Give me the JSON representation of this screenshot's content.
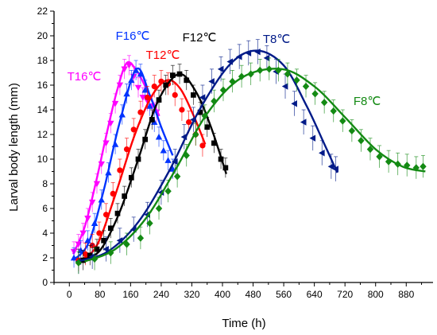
{
  "chart_data": {
    "type": "scatter",
    "xlabel": "Time (h)",
    "ylabel": "Larval body length (mm)",
    "xlim": [
      -40,
      950
    ],
    "ylim": [
      0,
      22
    ],
    "xticks": [
      0,
      80,
      160,
      240,
      320,
      400,
      480,
      560,
      640,
      720,
      800,
      880
    ],
    "yticks": [
      0,
      2,
      4,
      6,
      8,
      10,
      12,
      14,
      16,
      18,
      20,
      22
    ],
    "legend": "labels placed next to curves",
    "series": [
      {
        "name": "T16℃",
        "color": "#ff00ff",
        "marker": "triangle-down",
        "points": [
          [
            12,
            2.5
          ],
          [
            24,
            3.1
          ],
          [
            36,
            4.0
          ],
          [
            48,
            5.2
          ],
          [
            60,
            6.5
          ],
          [
            72,
            8.0
          ],
          [
            84,
            9.6
          ],
          [
            96,
            11.3
          ],
          [
            108,
            12.9
          ],
          [
            120,
            14.5
          ],
          [
            132,
            16.0
          ],
          [
            144,
            17.3
          ],
          [
            156,
            17.6
          ],
          [
            168,
            16.7
          ],
          [
            180,
            15.8
          ],
          [
            192,
            15.0
          ],
          [
            204,
            14.7
          ],
          [
            216,
            14.3
          ],
          [
            228,
            13.8
          ]
        ],
        "err": 0.8,
        "fit": {
          "peak_x": 150,
          "peak_y": 17.8,
          "x_range": [
            10,
            235
          ],
          "curve": [
            [
              10,
              2.3
            ],
            [
              40,
              4.5
            ],
            [
              70,
              8.2
            ],
            [
              100,
              12.4
            ],
            [
              125,
              15.6
            ],
            [
              150,
              17.8
            ],
            [
              175,
              17.2
            ],
            [
              200,
              15.8
            ],
            [
              235,
              13.5
            ]
          ]
        }
      },
      {
        "name": "F16℃",
        "color": "#0033ff",
        "marker": "triangle-up",
        "points": [
          [
            12,
            2.0
          ],
          [
            30,
            2.6
          ],
          [
            48,
            3.4
          ],
          [
            66,
            4.8
          ],
          [
            84,
            6.7
          ],
          [
            102,
            8.9
          ],
          [
            120,
            11.2
          ],
          [
            138,
            13.6
          ],
          [
            150,
            15.3
          ],
          [
            162,
            16.4
          ],
          [
            174,
            17.2
          ],
          [
            186,
            16.9
          ],
          [
            198,
            15.6
          ],
          [
            210,
            14.3
          ],
          [
            222,
            13.0
          ],
          [
            234,
            11.8
          ],
          [
            246,
            10.7
          ],
          [
            258,
            9.9
          ],
          [
            270,
            9.2
          ]
        ],
        "err": 0.8,
        "fit": {
          "peak_x": 175,
          "peak_y": 17.3,
          "x_range": [
            10,
            270
          ],
          "curve": [
            [
              10,
              1.8
            ],
            [
              50,
              3.2
            ],
            [
              90,
              7.5
            ],
            [
              130,
              12.8
            ],
            [
              175,
              17.3
            ],
            [
              210,
              15.2
            ],
            [
              240,
              12.6
            ],
            [
              270,
              10.3
            ]
          ]
        }
      },
      {
        "name": "T12℃",
        "color": "#ff0000",
        "marker": "circle",
        "points": [
          [
            24,
            1.8
          ],
          [
            42,
            2.3
          ],
          [
            60,
            3.0
          ],
          [
            78,
            4.0
          ],
          [
            96,
            5.5
          ],
          [
            114,
            7.2
          ],
          [
            132,
            9.1
          ],
          [
            150,
            10.8
          ],
          [
            168,
            12.4
          ],
          [
            186,
            13.8
          ],
          [
            204,
            15.0
          ],
          [
            222,
            15.9
          ],
          [
            240,
            16.3
          ],
          [
            258,
            16.1
          ],
          [
            276,
            15.2
          ],
          [
            294,
            14.0
          ],
          [
            312,
            13.0
          ],
          [
            330,
            12.0
          ],
          [
            348,
            11.1
          ]
        ],
        "err": 0.9,
        "fit": {
          "peak_x": 255,
          "peak_y": 16.4,
          "x_range": [
            20,
            355
          ],
          "curve": [
            [
              20,
              1.7
            ],
            [
              70,
              2.9
            ],
            [
              120,
              7.1
            ],
            [
              170,
              11.9
            ],
            [
              215,
              15.1
            ],
            [
              255,
              16.4
            ],
            [
              290,
              15.7
            ],
            [
              325,
              13.5
            ],
            [
              355,
              11.2
            ]
          ]
        }
      },
      {
        "name": "F12℃",
        "color": "#000000",
        "marker": "square",
        "points": [
          [
            36,
            1.8
          ],
          [
            54,
            2.2
          ],
          [
            72,
            2.7
          ],
          [
            90,
            3.4
          ],
          [
            108,
            4.4
          ],
          [
            126,
            5.6
          ],
          [
            144,
            7.0
          ],
          [
            162,
            8.5
          ],
          [
            180,
            10.0
          ],
          [
            198,
            11.6
          ],
          [
            216,
            13.2
          ],
          [
            234,
            14.8
          ],
          [
            252,
            16.0
          ],
          [
            270,
            16.8
          ],
          [
            288,
            16.9
          ],
          [
            306,
            16.4
          ],
          [
            324,
            15.2
          ],
          [
            342,
            13.8
          ],
          [
            360,
            12.6
          ],
          [
            378,
            11.3
          ],
          [
            396,
            10.0
          ],
          [
            408,
            9.3
          ]
        ],
        "err": 0.8,
        "fit": {
          "peak_x": 285,
          "peak_y": 16.9,
          "x_range": [
            30,
            410
          ],
          "curve": [
            [
              30,
              1.8
            ],
            [
              80,
              2.6
            ],
            [
              130,
              5.6
            ],
            [
              180,
              10.0
            ],
            [
              230,
              14.6
            ],
            [
              285,
              16.9
            ],
            [
              330,
              15.5
            ],
            [
              370,
              12.6
            ],
            [
              410,
              8.8
            ]
          ]
        }
      },
      {
        "name": "T8℃",
        "color": "#001a88",
        "marker": "triangle-left",
        "points": [
          [
            24,
            1.7
          ],
          [
            60,
            2.1
          ],
          [
            96,
            2.7
          ],
          [
            132,
            3.4
          ],
          [
            168,
            4.3
          ],
          [
            204,
            5.5
          ],
          [
            240,
            7.3
          ],
          [
            276,
            9.8
          ],
          [
            300,
            11.8
          ],
          [
            324,
            13.2
          ],
          [
            348,
            15.0
          ],
          [
            372,
            16.3
          ],
          [
            396,
            17.3
          ],
          [
            420,
            17.9
          ],
          [
            444,
            18.3
          ],
          [
            468,
            18.6
          ],
          [
            492,
            18.7
          ],
          [
            516,
            18.2
          ],
          [
            540,
            17.1
          ],
          [
            564,
            15.9
          ],
          [
            588,
            14.5
          ],
          [
            612,
            13.0
          ],
          [
            636,
            11.7
          ],
          [
            660,
            10.5
          ],
          [
            684,
            9.4
          ],
          [
            696,
            9.2
          ]
        ],
        "err": 1.0,
        "fit": {
          "peak_x": 490,
          "peak_y": 18.8,
          "x_range": [
            20,
            700
          ],
          "curve": [
            [
              20,
              1.7
            ],
            [
              100,
              2.5
            ],
            [
              180,
              4.9
            ],
            [
              260,
              9.0
            ],
            [
              340,
              14.0
            ],
            [
              420,
              17.7
            ],
            [
              490,
              18.8
            ],
            [
              560,
              17.6
            ],
            [
              620,
              14.3
            ],
            [
              665,
              11.3
            ],
            [
              700,
              8.9
            ]
          ]
        }
      },
      {
        "name": "F8℃",
        "color": "#138a13",
        "marker": "diamond",
        "points": [
          [
            24,
            1.6
          ],
          [
            66,
            1.9
          ],
          [
            108,
            2.4
          ],
          [
            150,
            3.1
          ],
          [
            186,
            3.6
          ],
          [
            210,
            4.8
          ],
          [
            234,
            6.0
          ],
          [
            258,
            7.4
          ],
          [
            282,
            8.6
          ],
          [
            306,
            10.3
          ],
          [
            330,
            12.0
          ],
          [
            354,
            13.5
          ],
          [
            378,
            14.7
          ],
          [
            402,
            15.6
          ],
          [
            426,
            16.3
          ],
          [
            450,
            16.7
          ],
          [
            474,
            16.9
          ],
          [
            498,
            17.2
          ],
          [
            522,
            17.3
          ],
          [
            546,
            17.2
          ],
          [
            570,
            16.9
          ],
          [
            594,
            16.4
          ],
          [
            618,
            15.9
          ],
          [
            642,
            15.3
          ],
          [
            666,
            14.6
          ],
          [
            690,
            13.9
          ],
          [
            714,
            13.1
          ],
          [
            738,
            12.3
          ],
          [
            762,
            11.5
          ],
          [
            786,
            10.8
          ],
          [
            810,
            10.2
          ],
          [
            834,
            9.8
          ],
          [
            858,
            9.6
          ],
          [
            882,
            9.5
          ],
          [
            906,
            9.3
          ],
          [
            924,
            9.4
          ]
        ],
        "err": 0.9,
        "fit": {
          "peak_x": 555,
          "peak_y": 17.3,
          "x_range": [
            40,
            930
          ],
          "curve": [
            [
              40,
              1.7
            ],
            [
              120,
              2.7
            ],
            [
              200,
              5.2
            ],
            [
              280,
              9.3
            ],
            [
              360,
              13.7
            ],
            [
              450,
              16.6
            ],
            [
              555,
              17.3
            ],
            [
              640,
              15.9
            ],
            [
              720,
              13.4
            ],
            [
              800,
              10.8
            ],
            [
              870,
              9.4
            ],
            [
              930,
              9.0
            ]
          ]
        }
      }
    ],
    "labels": [
      {
        "text": "T16℃",
        "series": "T16℃"
      },
      {
        "text": "F16℃",
        "series": "F16℃"
      },
      {
        "text": "T12℃",
        "series": "T12℃"
      },
      {
        "text": "F12℃",
        "series": "F12℃"
      },
      {
        "text": "T8℃",
        "series": "T8℃"
      },
      {
        "text": "F8℃",
        "series": "F8℃"
      }
    ]
  }
}
